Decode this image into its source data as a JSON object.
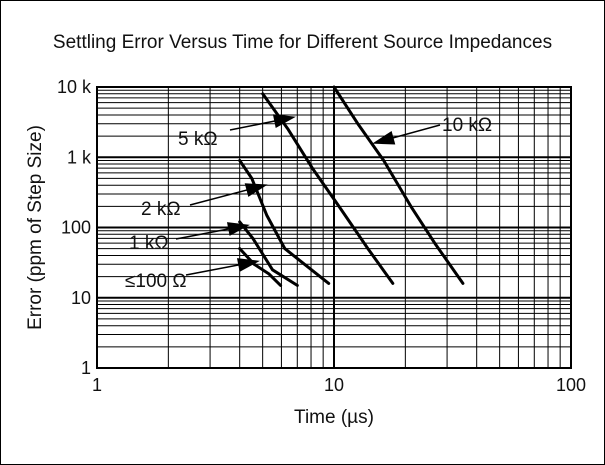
{
  "chart_data": {
    "type": "line",
    "title": "Settling Error Versus Time for Different Source Impedances",
    "xlabel": "Time (µs)",
    "ylabel": "Error (ppm of Step Size)",
    "xscale": "log",
    "yscale": "log",
    "xlim": [
      1,
      100
    ],
    "ylim": [
      1,
      10000
    ],
    "grid": true,
    "x_ticks": [
      {
        "value": 1,
        "label": "1"
      },
      {
        "value": 10,
        "label": "10"
      },
      {
        "value": 100,
        "label": "100"
      }
    ],
    "y_ticks": [
      {
        "value": 1,
        "label": "1"
      },
      {
        "value": 10,
        "label": "10"
      },
      {
        "value": 100,
        "label": "100"
      },
      {
        "value": 1000,
        "label": "1 k"
      },
      {
        "value": 10000,
        "label": "10 k"
      }
    ],
    "series": [
      {
        "name": "10 kΩ",
        "x": [
          10,
          12.6,
          16.2,
          21.1,
          26.6,
          35
        ],
        "y": [
          10000,
          3000,
          900,
          200,
          60,
          16
        ]
      },
      {
        "name": "5 kΩ",
        "x": [
          5,
          6.4,
          8.1,
          10.5,
          13.9,
          17.7
        ],
        "y": [
          8000,
          2500,
          700,
          200,
          50,
          16
        ]
      },
      {
        "name": "2 kΩ",
        "x": [
          4,
          4.5,
          5.2,
          6.2,
          7.5,
          9.5
        ],
        "y": [
          900,
          500,
          150,
          50,
          30,
          16
        ]
      },
      {
        "name": "1 kΩ",
        "x": [
          4,
          4.55,
          5.5,
          7
        ],
        "y": [
          120,
          70,
          25,
          15
        ]
      },
      {
        "name": "≤100 Ω",
        "x": [
          4,
          4.6,
          5.3,
          5.95
        ],
        "y": [
          50,
          30,
          22,
          15
        ]
      }
    ],
    "annotations": [
      {
        "text": "10 kΩ",
        "series": "10 kΩ"
      },
      {
        "text": "5 kΩ",
        "series": "5 kΩ"
      },
      {
        "text": "2 kΩ",
        "series": "2 kΩ"
      },
      {
        "text": "1 kΩ",
        "series": "1 kΩ"
      },
      {
        "text": "≤100 Ω",
        "series": "≤100 Ω"
      }
    ]
  }
}
